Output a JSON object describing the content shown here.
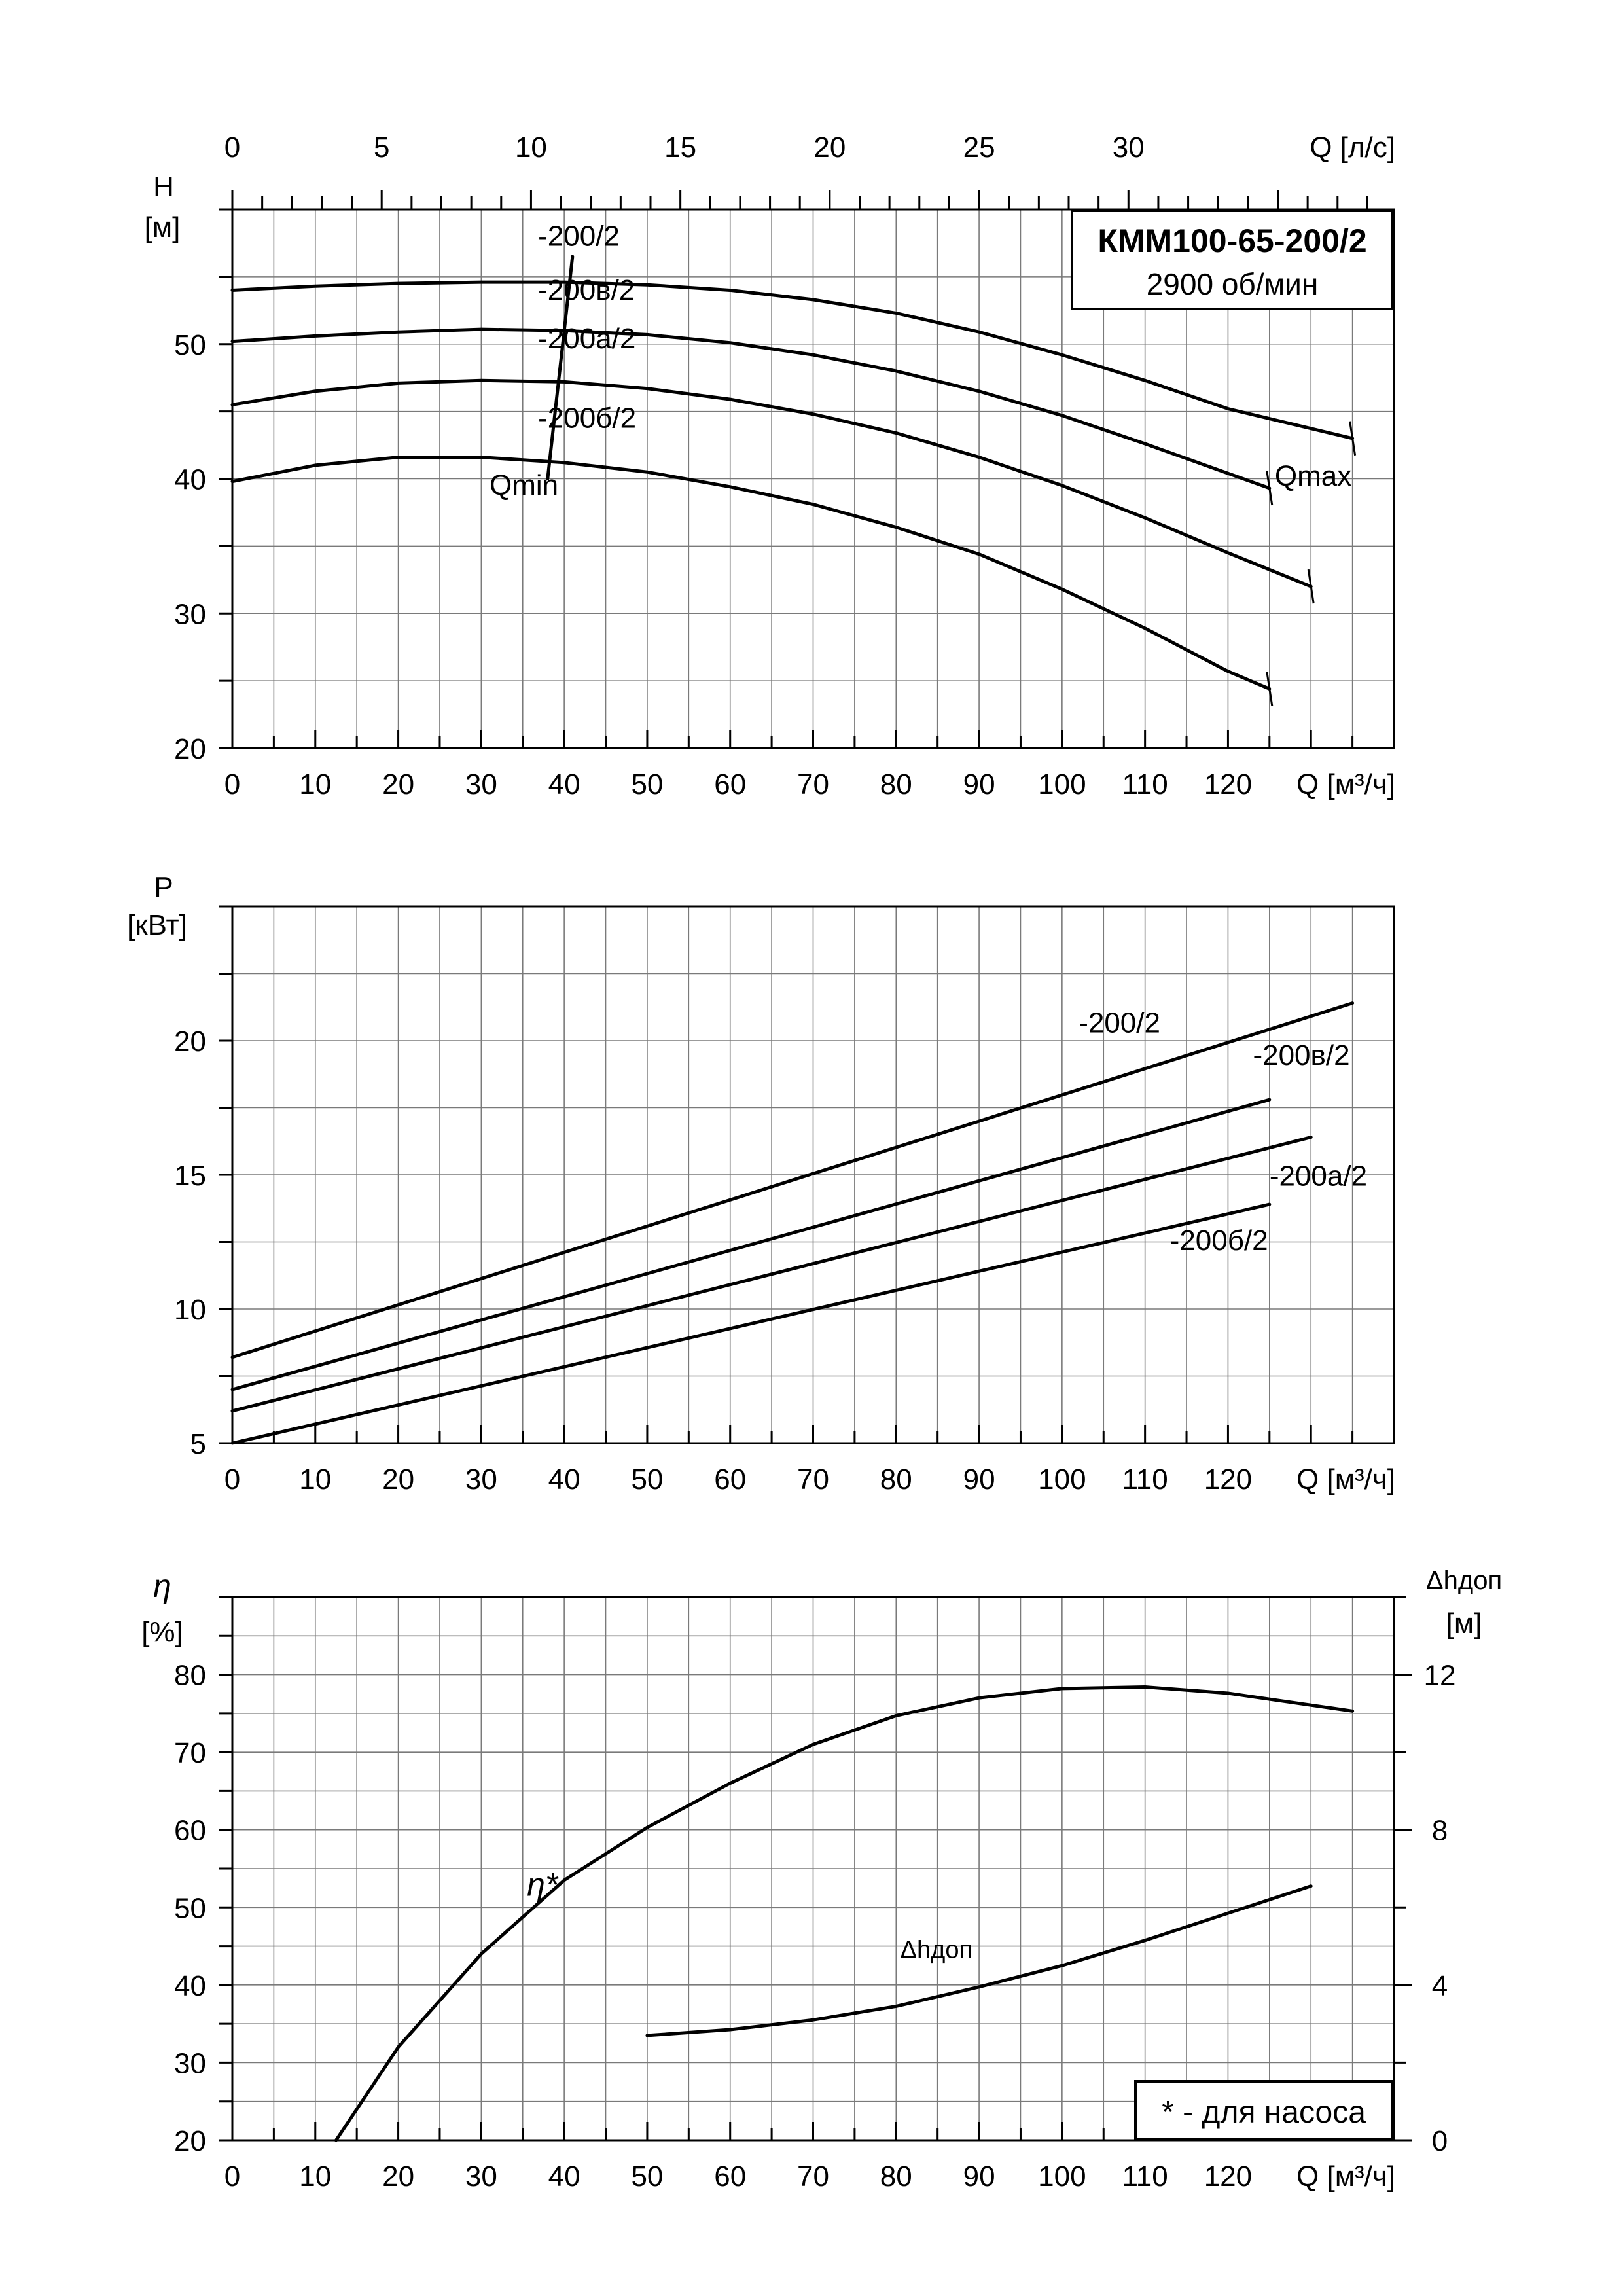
{
  "chart_data": [
    {
      "id": "head",
      "type": "line",
      "title": "КММ100-65-200/2",
      "subtitle": "2900 об/мин",
      "y_title": "H",
      "y_unit": "[м]",
      "x_label": "Q [м³/ч]",
      "x2_label": "Q [л/с]",
      "xlim": [
        0,
        140
      ],
      "ylim": [
        20,
        60
      ],
      "x_ticks": [
        0,
        10,
        20,
        30,
        40,
        50,
        60,
        70,
        80,
        90,
        100,
        110,
        120
      ],
      "y_ticks": [
        20,
        30,
        40,
        50
      ],
      "x2_ticks": [
        0,
        5,
        10,
        15,
        20,
        25,
        30
      ],
      "x2_factor": 3.6,
      "grid": true,
      "series": [
        {
          "name": "-200/2",
          "x": [
            0,
            10,
            20,
            30,
            40,
            50,
            60,
            70,
            80,
            90,
            100,
            110,
            120,
            135
          ],
          "y": [
            54.0,
            54.3,
            54.5,
            54.6,
            54.6,
            54.4,
            54.0,
            53.3,
            52.3,
            50.9,
            49.2,
            47.3,
            45.2,
            43.0
          ]
        },
        {
          "name": "-200в/2",
          "x": [
            0,
            10,
            20,
            30,
            40,
            50,
            60,
            70,
            80,
            90,
            100,
            110,
            120,
            125
          ],
          "y": [
            50.2,
            50.6,
            50.9,
            51.1,
            51.0,
            50.7,
            50.1,
            49.2,
            48.0,
            46.5,
            44.7,
            42.6,
            40.4,
            39.3
          ]
        },
        {
          "name": "-200а/2",
          "x": [
            0,
            10,
            20,
            30,
            40,
            50,
            60,
            70,
            80,
            90,
            100,
            110,
            120,
            130
          ],
          "y": [
            45.5,
            46.5,
            47.1,
            47.3,
            47.2,
            46.7,
            45.9,
            44.8,
            43.4,
            41.6,
            39.5,
            37.1,
            34.5,
            32.0
          ]
        },
        {
          "name": "-200б/2",
          "x": [
            0,
            10,
            20,
            30,
            40,
            50,
            60,
            70,
            80,
            90,
            100,
            110,
            120,
            125
          ],
          "y": [
            39.8,
            41.0,
            41.6,
            41.6,
            41.2,
            40.5,
            39.4,
            38.1,
            36.4,
            34.4,
            31.8,
            28.9,
            25.7,
            24.4
          ]
        }
      ],
      "annotations": [
        {
          "text": "Qmin",
          "x1": 38,
          "y1": 40,
          "x2": 41,
          "y2": 56.5,
          "label_x": 31,
          "label_y": 38.8
        },
        {
          "text": "Qmax",
          "label_x": 128,
          "label_y": 39.5
        }
      ]
    },
    {
      "id": "power",
      "type": "line",
      "y_title": "P",
      "y_unit": "[кВт]",
      "x_label": "Q [м³/ч]",
      "xlim": [
        0,
        140
      ],
      "ylim": [
        5,
        25
      ],
      "x_ticks": [
        0,
        10,
        20,
        30,
        40,
        50,
        60,
        70,
        80,
        90,
        100,
        110,
        120
      ],
      "y_ticks": [
        5,
        10,
        15,
        20
      ],
      "grid": true,
      "series": [
        {
          "name": "-200/2",
          "x": [
            0,
            135
          ],
          "y": [
            8.2,
            21.4
          ]
        },
        {
          "name": "-200в/2",
          "x": [
            0,
            125
          ],
          "y": [
            7.0,
            17.8
          ]
        },
        {
          "name": "-200а/2",
          "x": [
            0,
            130
          ],
          "y": [
            6.2,
            16.4
          ]
        },
        {
          "name": "-200б/2",
          "x": [
            0,
            125
          ],
          "y": [
            5.0,
            13.9
          ]
        }
      ]
    },
    {
      "id": "efficiency",
      "type": "line",
      "y_title": "η",
      "y_unit": "[%]",
      "y2_title": "Δhдоп",
      "y2_unit": "[м]",
      "x_label": "Q [м³/ч]",
      "xlim": [
        0,
        140
      ],
      "ylim": [
        20,
        90
      ],
      "y2lim": [
        0,
        14
      ],
      "x_ticks": [
        0,
        10,
        20,
        30,
        40,
        50,
        60,
        70,
        80,
        90,
        100,
        110,
        120
      ],
      "y_ticks": [
        20,
        30,
        40,
        50,
        60,
        70,
        80
      ],
      "y2_ticks": [
        0,
        4,
        8,
        12
      ],
      "grid": true,
      "note": "* - для насоса",
      "series": [
        {
          "name": "η*",
          "axis": "left",
          "x": [
            12.5,
            20,
            30,
            40,
            50,
            60,
            70,
            80,
            90,
            100,
            110,
            120,
            135
          ],
          "y": [
            20.0,
            32.0,
            44.0,
            53.5,
            60.3,
            66.0,
            71.0,
            74.7,
            77.0,
            78.2,
            78.4,
            77.6,
            75.3
          ]
        },
        {
          "name": "Δhдоп",
          "axis": "right",
          "x": [
            50,
            60,
            70,
            80,
            90,
            100,
            110,
            120,
            130
          ],
          "y": [
            2.7,
            2.85,
            3.1,
            3.45,
            3.95,
            4.5,
            5.15,
            5.85,
            6.55
          ]
        }
      ]
    }
  ],
  "curve_labels": {
    "head": [
      "-200/2",
      "-200в/2",
      "-200а/2",
      "-200б/2"
    ],
    "power": [
      "-200/2",
      "-200в/2",
      "-200а/2",
      "-200б/2"
    ],
    "efficiency": [
      "η*",
      "Δhдоп"
    ]
  }
}
